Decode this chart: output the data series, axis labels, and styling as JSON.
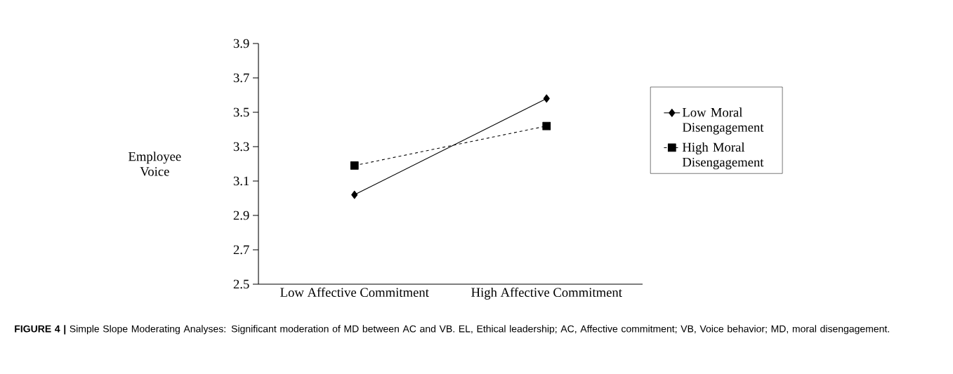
{
  "chart_data": {
    "type": "line",
    "ylabel": "Employee Voice",
    "categories": [
      "Low Affective Commitment",
      "High Affective Commitment"
    ],
    "ylim": [
      2.5,
      3.9
    ],
    "yticks": [
      2.5,
      2.7,
      2.9,
      3.1,
      3.3,
      3.5,
      3.7,
      3.9
    ],
    "series": [
      {
        "name": "Low Moral Disengagement",
        "color": "#000000",
        "marker": "diamond",
        "line_style": "solid",
        "values": [
          3.02,
          3.58
        ]
      },
      {
        "name": "High Moral Disengagement",
        "color": "#000000",
        "marker": "square",
        "line_style": "dashed",
        "values": [
          3.19,
          3.42
        ]
      }
    ],
    "legend": "right",
    "grid": false,
    "annotations": [
      "**FIGURE 4 |** Simple Slope Moderating Analyses: Significant moderation of MD between AC and VB. EL, Ethical leadership; AC, Affective commitment; VB, Voice behavior; MD, moral disengagement."
    ]
  }
}
